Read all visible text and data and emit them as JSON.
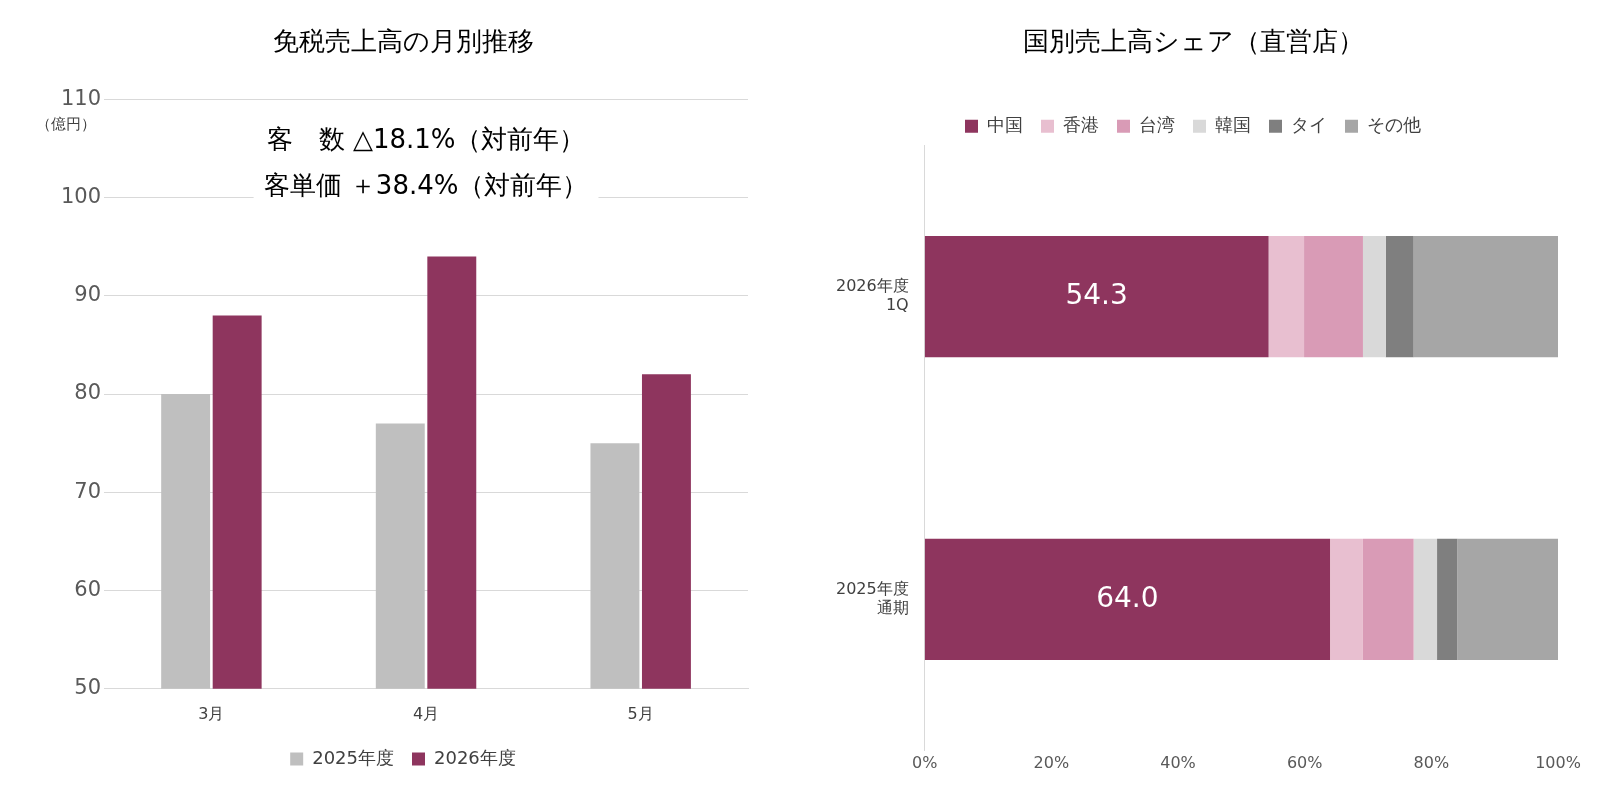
{
  "chart_data": [
    {
      "type": "bar",
      "title": "免税売上高の月別推移",
      "ylabel": "（億円）",
      "categories": [
        "3月",
        "4月",
        "5月"
      ],
      "series": [
        {
          "name": "2025年度",
          "color": "#bfbfbf",
          "values": [
            80,
            77,
            75
          ]
        },
        {
          "name": "2026年度",
          "color": "#8e355e",
          "values": [
            88,
            94,
            82
          ]
        }
      ],
      "ylim": [
        50,
        110
      ],
      "yticks": [
        50,
        60,
        70,
        80,
        90,
        100,
        110
      ],
      "grid": "y",
      "legend": "bottom",
      "annotations": [
        "客　数 △18.1%（対前年）",
        "客単価 ＋38.4%（対前年）"
      ]
    },
    {
      "type": "bar",
      "orientation": "horizontal",
      "stacked": true,
      "title": "国別売上高シェア（直営店）",
      "categories": [
        "2026年度1Q",
        "2025年度通期"
      ],
      "series": [
        {
          "name": "中国",
          "color": "#8e355e",
          "values": [
            54.3,
            64.0
          ],
          "value_labels": [
            "54.3",
            "64.0"
          ]
        },
        {
          "name": "香港",
          "color": "#e8bfd0",
          "values": [
            5.6,
            5.2
          ]
        },
        {
          "name": "台湾",
          "color": "#d99bb6",
          "values": [
            9.3,
            8.0
          ]
        },
        {
          "name": "韓国",
          "color": "#d9d9d9",
          "values": [
            3.6,
            3.7
          ]
        },
        {
          "name": "タイ",
          "color": "#7f7f7f",
          "values": [
            4.4,
            3.2
          ]
        },
        {
          "name": "その他",
          "color": "#a6a6a6",
          "values": [
            22.8,
            15.9
          ]
        }
      ],
      "xlim": [
        0,
        100
      ],
      "xticks": [
        {
          "value": 0,
          "label": "0%"
        },
        {
          "value": 20,
          "label": "20%"
        },
        {
          "value": 40,
          "label": "40%"
        },
        {
          "value": 60,
          "label": "60%"
        },
        {
          "value": 80,
          "label": "80%"
        },
        {
          "value": 100,
          "label": "100%"
        }
      ],
      "grid": false,
      "legend": "top"
    }
  ]
}
